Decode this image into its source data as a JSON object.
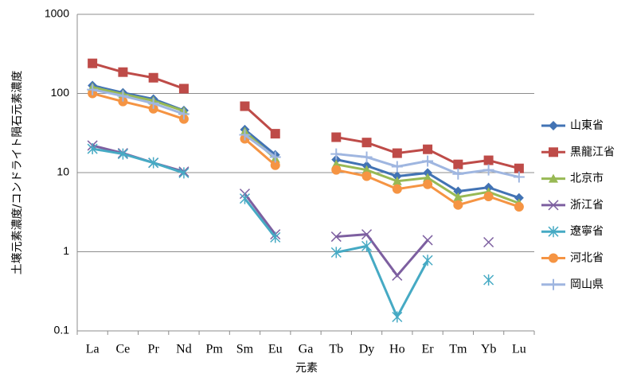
{
  "chart_data": {
    "type": "line",
    "x_label": "元素",
    "y_label": "土壌元素濃度/コンドライト隕石元素濃度",
    "categories": [
      "La",
      "Ce",
      "Pr",
      "Nd",
      "Pm",
      "Sm",
      "Eu",
      "Ga",
      "Tb",
      "Dy",
      "Ho",
      "Er",
      "Tm",
      "Yb",
      "Lu"
    ],
    "ylim": [
      0.1,
      1000
    ],
    "yticks": [
      0.1,
      1,
      10,
      100,
      1000
    ],
    "log_scale": true,
    "grid": true,
    "legend": "right",
    "series": [
      {
        "name": "山東省",
        "color": "#4273b4",
        "marker": "diamond",
        "values": [
          126,
          102,
          85,
          61,
          null,
          35,
          16.8,
          null,
          14.6,
          12.2,
          9,
          9.9,
          5.8,
          6.5,
          4.8
        ]
      },
      {
        "name": "黒龍江省",
        "color": "#be4b48",
        "marker": "square",
        "values": [
          240,
          186,
          158,
          115,
          null,
          69,
          31,
          null,
          28,
          24,
          17.6,
          19.7,
          12.7,
          14.3,
          11.3
        ]
      },
      {
        "name": "北京市",
        "color": "#98b954",
        "marker": "triangle",
        "values": [
          120,
          98,
          81,
          60,
          null,
          33,
          15,
          null,
          12.7,
          10.8,
          7.8,
          8.6,
          4.9,
          5.7,
          4.1
        ]
      },
      {
        "name": "浙江省",
        "color": "#7d5fa0",
        "marker": "x",
        "values": [
          22,
          17.6,
          13.3,
          10.3,
          null,
          5.4,
          1.66,
          null,
          1.55,
          1.66,
          0.5,
          1.4,
          null,
          1.32,
          null
        ]
      },
      {
        "name": "遼寧省",
        "color": "#46aac4",
        "marker": "star",
        "values": [
          20,
          17.2,
          13.3,
          9.9,
          null,
          4.7,
          1.52,
          null,
          0.98,
          1.18,
          0.15,
          0.78,
          null,
          0.44,
          null
        ]
      },
      {
        "name": "河北省",
        "color": "#f59443",
        "marker": "circle",
        "values": [
          100,
          79,
          64,
          47.5,
          null,
          26.7,
          12.4,
          null,
          10.8,
          9,
          6.2,
          7.1,
          3.9,
          5.0,
          3.7
        ]
      },
      {
        "name": "岡山県",
        "color": "#9fb6e0",
        "marker": "plus",
        "values": [
          112,
          93,
          75,
          55,
          null,
          30,
          15.7,
          null,
          17.2,
          15.7,
          11.9,
          14,
          9.6,
          10.8,
          8.8
        ]
      }
    ]
  }
}
